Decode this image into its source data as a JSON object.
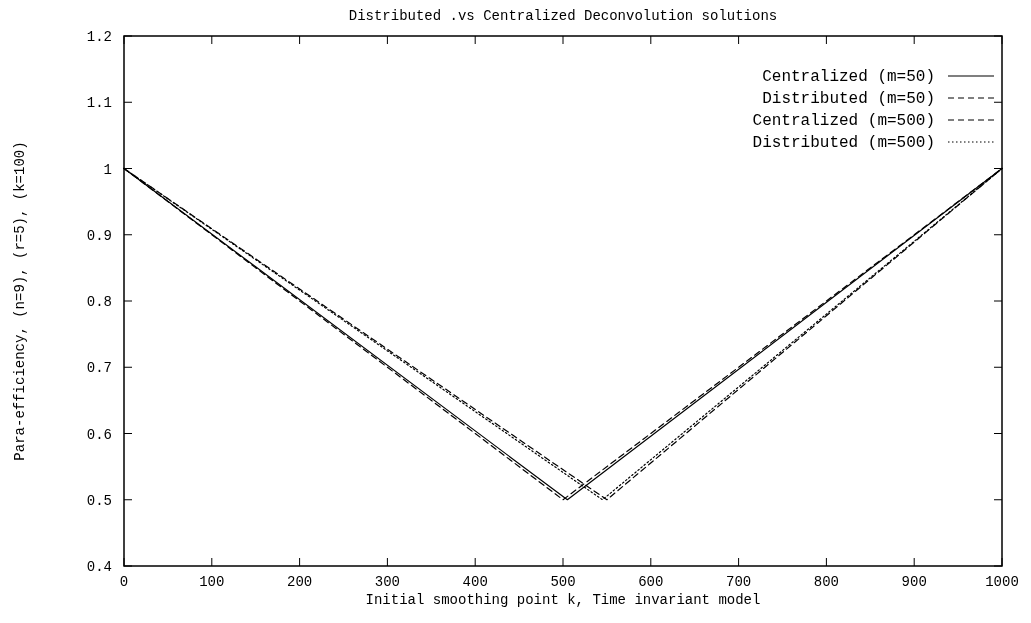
{
  "chart_data": {
    "type": "line",
    "title": "Distributed .vs Centralized Deconvolution solutions",
    "xlabel": "Initial smoothing point k, Time invariant model",
    "ylabel": "Para-efficiency, (n=9), (r=5), (k=100)",
    "series": [
      {
        "name": "Centralized (m=50)",
        "color": "#000000",
        "line_style": "solid",
        "x": [
          0,
          505,
          1000
        ],
        "values": [
          1,
          0.5,
          1
        ]
      },
      {
        "name": "Distributed (m=50)",
        "color": "#000000",
        "line_style": "dashed",
        "x": [
          0,
          550,
          1000
        ],
        "values": [
          1,
          0.5,
          1
        ]
      },
      {
        "name": "Centralized (m=500)",
        "color": "#000000",
        "line_style": "dashed",
        "x": [
          0,
          500,
          1000
        ],
        "values": [
          1,
          0.5,
          1
        ]
      },
      {
        "name": "Distributed (m=500)",
        "color": "#000000",
        "line_style": "dotted",
        "x": [
          0,
          545,
          1000
        ],
        "values": [
          1,
          0.5,
          1
        ]
      }
    ],
    "xlim": [
      0,
      1000
    ],
    "xticks": [
      0,
      100,
      200,
      300,
      400,
      500,
      600,
      700,
      800,
      900,
      1000
    ],
    "ylim": [
      0.4,
      1.2
    ],
    "yticks": [
      0.4,
      0.5,
      0.6,
      0.7,
      0.8,
      0.9,
      1,
      1.1,
      1.2
    ],
    "legend": "top right",
    "grid": false,
    "marker": "none"
  }
}
